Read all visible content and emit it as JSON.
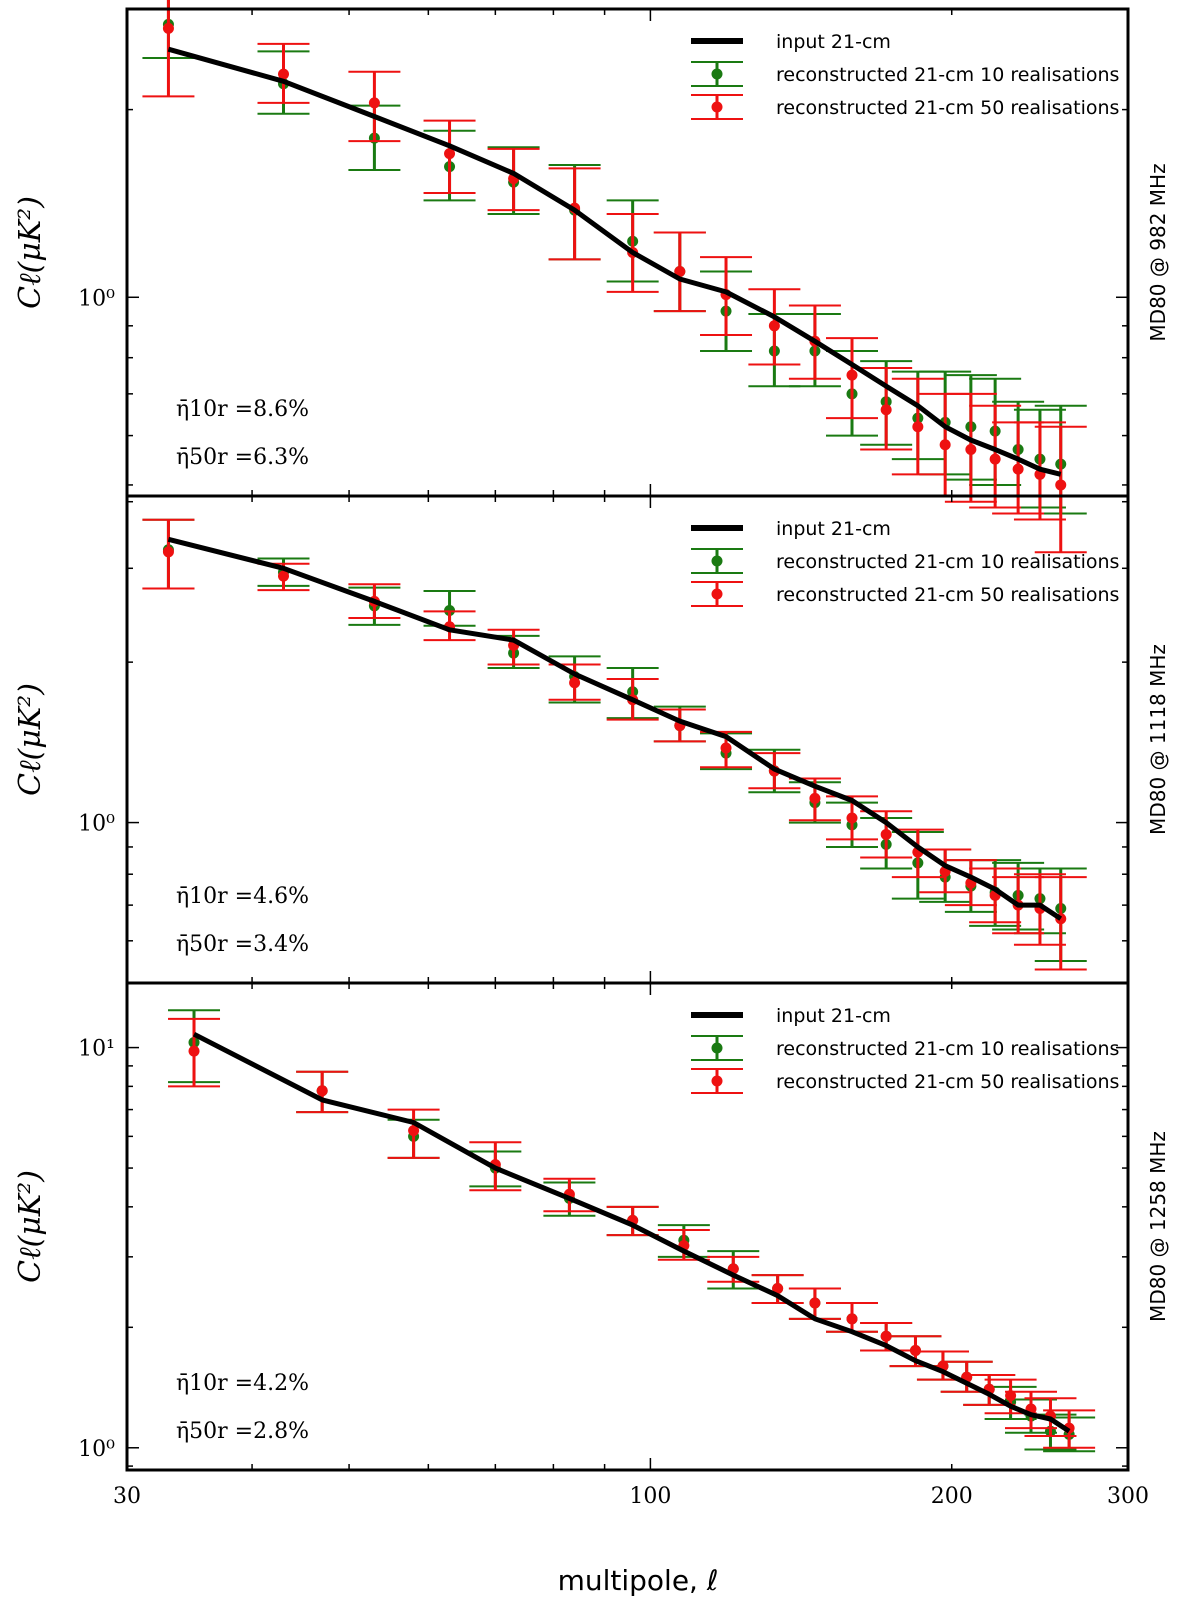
{
  "chart_data": {
    "type": "line",
    "xlabel": "multipole, ℓ",
    "xscale": "log",
    "xlim": [
      30,
      300
    ],
    "x_ticks": [
      {
        "value": 30,
        "label": "30"
      },
      {
        "value": 100,
        "label": "100"
      },
      {
        "value": 200,
        "label": "200"
      },
      {
        "value": 300,
        "label": "300"
      }
    ],
    "legend": {
      "placement": "top-right",
      "entries": [
        "input 21-cm",
        "reconstructed 21-cm 10 realisations",
        "reconstructed 21-cm 50 realisations"
      ]
    },
    "colors": {
      "input": "#000000",
      "r10": "#1a7a12",
      "r50": "#ee1111"
    },
    "panels": [
      {
        "side_label": "MD80 @ 982 MHz",
        "ylabel": "Cℓ(μK²)",
        "yscale": "log",
        "ylim": [
          0.48,
          2.9
        ],
        "y_ticks": [
          {
            "value": 1.0,
            "label": "10⁰"
          }
        ],
        "eta_10r": "η̄10r =8.6%",
        "eta_50r": "η̄50r =6.3%",
        "x": [
          33,
          43,
          53,
          63,
          73,
          84,
          96,
          107,
          119,
          133,
          146,
          159,
          172,
          185,
          197,
          209,
          221,
          233,
          245,
          257
        ],
        "input": [
          2.5,
          2.22,
          1.95,
          1.75,
          1.58,
          1.38,
          1.18,
          1.07,
          1.02,
          0.93,
          0.85,
          0.78,
          0.72,
          0.67,
          0.62,
          0.59,
          0.57,
          0.55,
          0.53,
          0.52
        ],
        "r10": [
          [
            2.74,
            2.42,
            3.09
          ],
          [
            2.2,
            1.97,
            2.48
          ],
          [
            1.8,
            1.6,
            2.03
          ],
          [
            1.62,
            1.43,
            1.85
          ],
          [
            1.53,
            1.36,
            1.74
          ],
          [
            1.38,
            1.15,
            1.63
          ],
          [
            1.23,
            1.06,
            1.43
          ],
          [
            1.1,
            0.95,
            1.27
          ],
          [
            0.95,
            0.82,
            1.1
          ],
          [
            0.82,
            0.72,
            0.94
          ],
          [
            0.82,
            0.72,
            0.94
          ],
          [
            0.7,
            0.6,
            0.82
          ],
          [
            0.68,
            0.58,
            0.79
          ],
          [
            0.64,
            0.55,
            0.76
          ],
          [
            0.63,
            0.52,
            0.76
          ],
          [
            0.62,
            0.51,
            0.75
          ],
          [
            0.61,
            0.5,
            0.74
          ],
          [
            0.57,
            0.48,
            0.68
          ],
          [
            0.55,
            0.46,
            0.66
          ],
          [
            0.54,
            0.45,
            0.67
          ]
        ],
        "r50": [
          [
            2.7,
            2.1,
            3.15
          ],
          [
            2.28,
            2.05,
            2.55
          ],
          [
            2.05,
            1.78,
            2.3
          ],
          [
            1.7,
            1.47,
            1.92
          ],
          [
            1.55,
            1.38,
            1.73
          ],
          [
            1.39,
            1.15,
            1.61
          ],
          [
            1.18,
            1.02,
            1.36
          ],
          [
            1.1,
            0.95,
            1.27
          ],
          [
            1.01,
            0.87,
            1.16
          ],
          [
            0.9,
            0.78,
            1.03
          ],
          [
            0.85,
            0.74,
            0.97
          ],
          [
            0.75,
            0.64,
            0.86
          ],
          [
            0.66,
            0.57,
            0.77
          ],
          [
            0.62,
            0.52,
            0.74
          ],
          [
            0.58,
            0.48,
            0.7
          ],
          [
            0.57,
            0.47,
            0.7
          ],
          [
            0.55,
            0.46,
            0.67
          ],
          [
            0.53,
            0.45,
            0.63
          ],
          [
            0.52,
            0.44,
            0.63
          ],
          [
            0.5,
            0.39,
            0.62
          ]
        ]
      },
      {
        "side_label": "MD80 @ 1118 MHz",
        "ylabel": "Cℓ(μK²)",
        "yscale": "log",
        "ylim": [
          0.5,
          4.1
        ],
        "y_ticks": [
          {
            "value": 1.0,
            "label": "10⁰"
          }
        ],
        "eta_10r": "η̄10r =4.6%",
        "eta_50r": "η̄50r =3.4%",
        "x": [
          33,
          43,
          53,
          63,
          73,
          84,
          96,
          107,
          119,
          133,
          146,
          159,
          172,
          185,
          197,
          209,
          221,
          233,
          245,
          257
        ],
        "input": [
          3.4,
          3.0,
          2.6,
          2.3,
          2.2,
          1.9,
          1.7,
          1.55,
          1.45,
          1.26,
          1.17,
          1.1,
          1.0,
          0.9,
          0.83,
          0.79,
          0.75,
          0.7,
          0.7,
          0.66
        ],
        "r10": [
          [
            3.25,
            2.75,
            3.7
          ],
          [
            2.95,
            2.78,
            3.13
          ],
          [
            2.55,
            2.35,
            2.76
          ],
          [
            2.5,
            2.34,
            2.72
          ],
          [
            2.08,
            1.95,
            2.24
          ],
          [
            1.88,
            1.68,
            2.05
          ],
          [
            1.76,
            1.57,
            1.95
          ],
          [
            1.52,
            1.42,
            1.65
          ],
          [
            1.35,
            1.26,
            1.47
          ],
          [
            1.25,
            1.14,
            1.37
          ],
          [
            1.09,
            1.0,
            1.19
          ],
          [
            0.99,
            0.9,
            1.09
          ],
          [
            0.91,
            0.82,
            1.02
          ],
          [
            0.84,
            0.72,
            0.96
          ],
          [
            0.79,
            0.71,
            0.89
          ],
          [
            0.76,
            0.68,
            0.85
          ],
          [
            0.74,
            0.64,
            0.85
          ],
          [
            0.73,
            0.63,
            0.84
          ],
          [
            0.72,
            0.62,
            0.82
          ],
          [
            0.69,
            0.55,
            0.82
          ]
        ],
        "r50": [
          [
            3.22,
            2.75,
            3.7
          ],
          [
            2.9,
            2.73,
            3.06
          ],
          [
            2.6,
            2.42,
            2.8
          ],
          [
            2.33,
            2.2,
            2.49
          ],
          [
            2.15,
            1.98,
            2.3
          ],
          [
            1.83,
            1.7,
            1.98
          ],
          [
            1.7,
            1.56,
            1.86
          ],
          [
            1.52,
            1.42,
            1.63
          ],
          [
            1.38,
            1.27,
            1.48
          ],
          [
            1.25,
            1.16,
            1.35
          ],
          [
            1.11,
            1.01,
            1.21
          ],
          [
            1.02,
            0.93,
            1.12
          ],
          [
            0.95,
            0.86,
            1.05
          ],
          [
            0.88,
            0.79,
            0.97
          ],
          [
            0.81,
            0.74,
            0.89
          ],
          [
            0.77,
            0.7,
            0.85
          ],
          [
            0.73,
            0.65,
            0.82
          ],
          [
            0.7,
            0.62,
            0.79
          ],
          [
            0.69,
            0.59,
            0.8
          ],
          [
            0.66,
            0.53,
            0.79
          ]
        ]
      },
      {
        "side_label": "MD80 @ 1258 MHz",
        "ylabel": "Cℓ(μK²)",
        "yscale": "log",
        "ylim": [
          0.88,
          14.5
        ],
        "y_ticks": [
          {
            "value": 1.0,
            "label": "10⁰"
          },
          {
            "value": 10.0,
            "label": "10¹"
          }
        ],
        "eta_10r": "η̄10r =4.2%",
        "eta_50r": "η̄50r =2.8%",
        "x": [
          35,
          47,
          58,
          70,
          83,
          96,
          108,
          121,
          134,
          146,
          159,
          172,
          184,
          196,
          207,
          218,
          229,
          240,
          251,
          262
        ],
        "input": [
          10.8,
          7.4,
          6.5,
          5.0,
          4.2,
          3.6,
          3.1,
          2.7,
          2.4,
          2.1,
          1.95,
          1.8,
          1.65,
          1.55,
          1.45,
          1.36,
          1.27,
          1.21,
          1.18,
          1.1
        ],
        "r10": [
          [
            10.3,
            8.2,
            12.4
          ],
          [
            7.8,
            6.9,
            8.7
          ],
          [
            6.0,
            5.3,
            6.6
          ],
          [
            5.0,
            4.5,
            5.5
          ],
          [
            4.2,
            3.8,
            4.6
          ],
          [
            3.7,
            3.4,
            4.0
          ],
          [
            3.3,
            3.0,
            3.6
          ],
          [
            2.8,
            2.5,
            3.1
          ],
          [
            2.5,
            2.3,
            2.7
          ],
          [
            2.3,
            2.1,
            2.5
          ],
          [
            2.1,
            1.95,
            2.3
          ],
          [
            1.9,
            1.75,
            2.05
          ],
          [
            1.75,
            1.6,
            1.9
          ],
          [
            1.6,
            1.48,
            1.74
          ],
          [
            1.5,
            1.38,
            1.64
          ],
          [
            1.4,
            1.28,
            1.52
          ],
          [
            1.3,
            1.18,
            1.42
          ],
          [
            1.2,
            1.09,
            1.32
          ],
          [
            1.1,
            0.99,
            1.21
          ],
          [
            1.08,
            0.98,
            1.19
          ]
        ],
        "r50": [
          [
            9.8,
            8.0,
            11.8
          ],
          [
            7.8,
            6.9,
            8.7
          ],
          [
            6.2,
            5.3,
            7.0
          ],
          [
            5.1,
            4.4,
            5.8
          ],
          [
            4.3,
            3.9,
            4.7
          ],
          [
            3.7,
            3.4,
            4.0
          ],
          [
            3.2,
            2.95,
            3.5
          ],
          [
            2.8,
            2.6,
            3.0
          ],
          [
            2.5,
            2.3,
            2.7
          ],
          [
            2.3,
            2.1,
            2.5
          ],
          [
            2.1,
            1.95,
            2.3
          ],
          [
            1.9,
            1.75,
            2.05
          ],
          [
            1.75,
            1.6,
            1.9
          ],
          [
            1.6,
            1.48,
            1.74
          ],
          [
            1.5,
            1.38,
            1.64
          ],
          [
            1.4,
            1.28,
            1.52
          ],
          [
            1.35,
            1.22,
            1.48
          ],
          [
            1.25,
            1.12,
            1.38
          ],
          [
            1.2,
            1.07,
            1.33
          ],
          [
            1.12,
            1.0,
            1.24
          ]
        ]
      }
    ]
  }
}
